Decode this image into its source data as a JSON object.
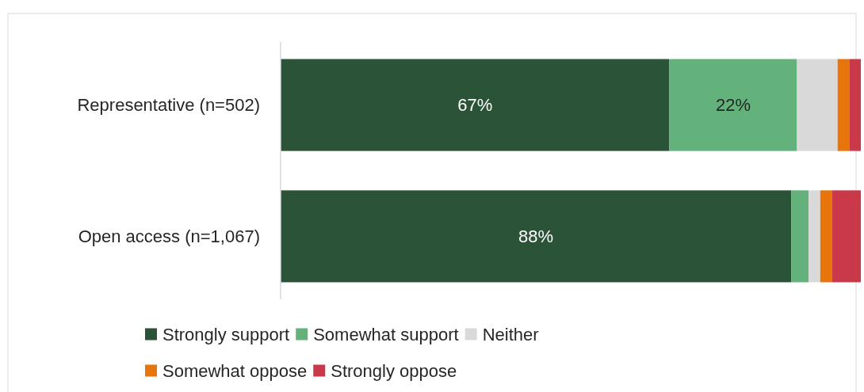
{
  "chart_data": {
    "type": "bar",
    "orientation": "horizontal",
    "stacked": true,
    "categories": [
      "Representative (n=502)",
      "Open access (n=1,067)"
    ],
    "xlim": [
      0,
      100
    ],
    "tick_labels": "y",
    "legend": "bottom",
    "series": [
      {
        "name": "Strongly support",
        "color": "#2a5338",
        "values": [
          67,
          88
        ],
        "value_labels": [
          "67%",
          "88%"
        ]
      },
      {
        "name": "Somewhat support",
        "color": "#63b27b",
        "values": [
          22,
          3
        ],
        "value_labels": [
          "22%",
          null
        ]
      },
      {
        "name": "Neither",
        "color": "#d9d9d9",
        "values": [
          7,
          2
        ],
        "value_labels": [
          null,
          null
        ]
      },
      {
        "name": "Somewhat oppose",
        "color": "#e8740c",
        "values": [
          2,
          2
        ],
        "value_labels": [
          null,
          null
        ]
      },
      {
        "name": "Strongly oppose",
        "color": "#c9394a",
        "values": [
          2,
          5
        ],
        "value_labels": [
          null,
          null
        ]
      }
    ]
  }
}
